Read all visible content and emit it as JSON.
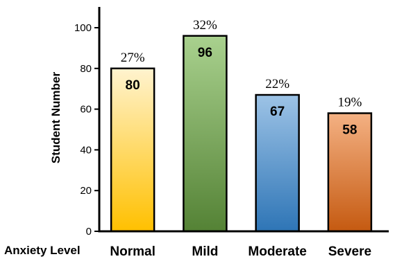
{
  "chart_data": {
    "type": "bar",
    "categories": [
      "Normal",
      "Mild",
      "Moderate",
      "Severe"
    ],
    "values": [
      80,
      96,
      67,
      58
    ],
    "percent_labels": [
      "27%",
      "32%",
      "22%",
      "19%"
    ],
    "xlabel": "Anxiety Level",
    "ylabel": "Student Number",
    "ylim": [
      0,
      110
    ],
    "yticks": [
      0,
      20,
      40,
      60,
      80,
      100
    ],
    "grid": false,
    "legend": "none",
    "bar_colors": [
      {
        "top": "#fff3cf",
        "bottom": "#ffc000"
      },
      {
        "top": "#a9d18e",
        "bottom": "#548235"
      },
      {
        "top": "#9dc3e6",
        "bottom": "#2e75b6"
      },
      {
        "top": "#f4b183",
        "bottom": "#c55a11"
      }
    ]
  }
}
